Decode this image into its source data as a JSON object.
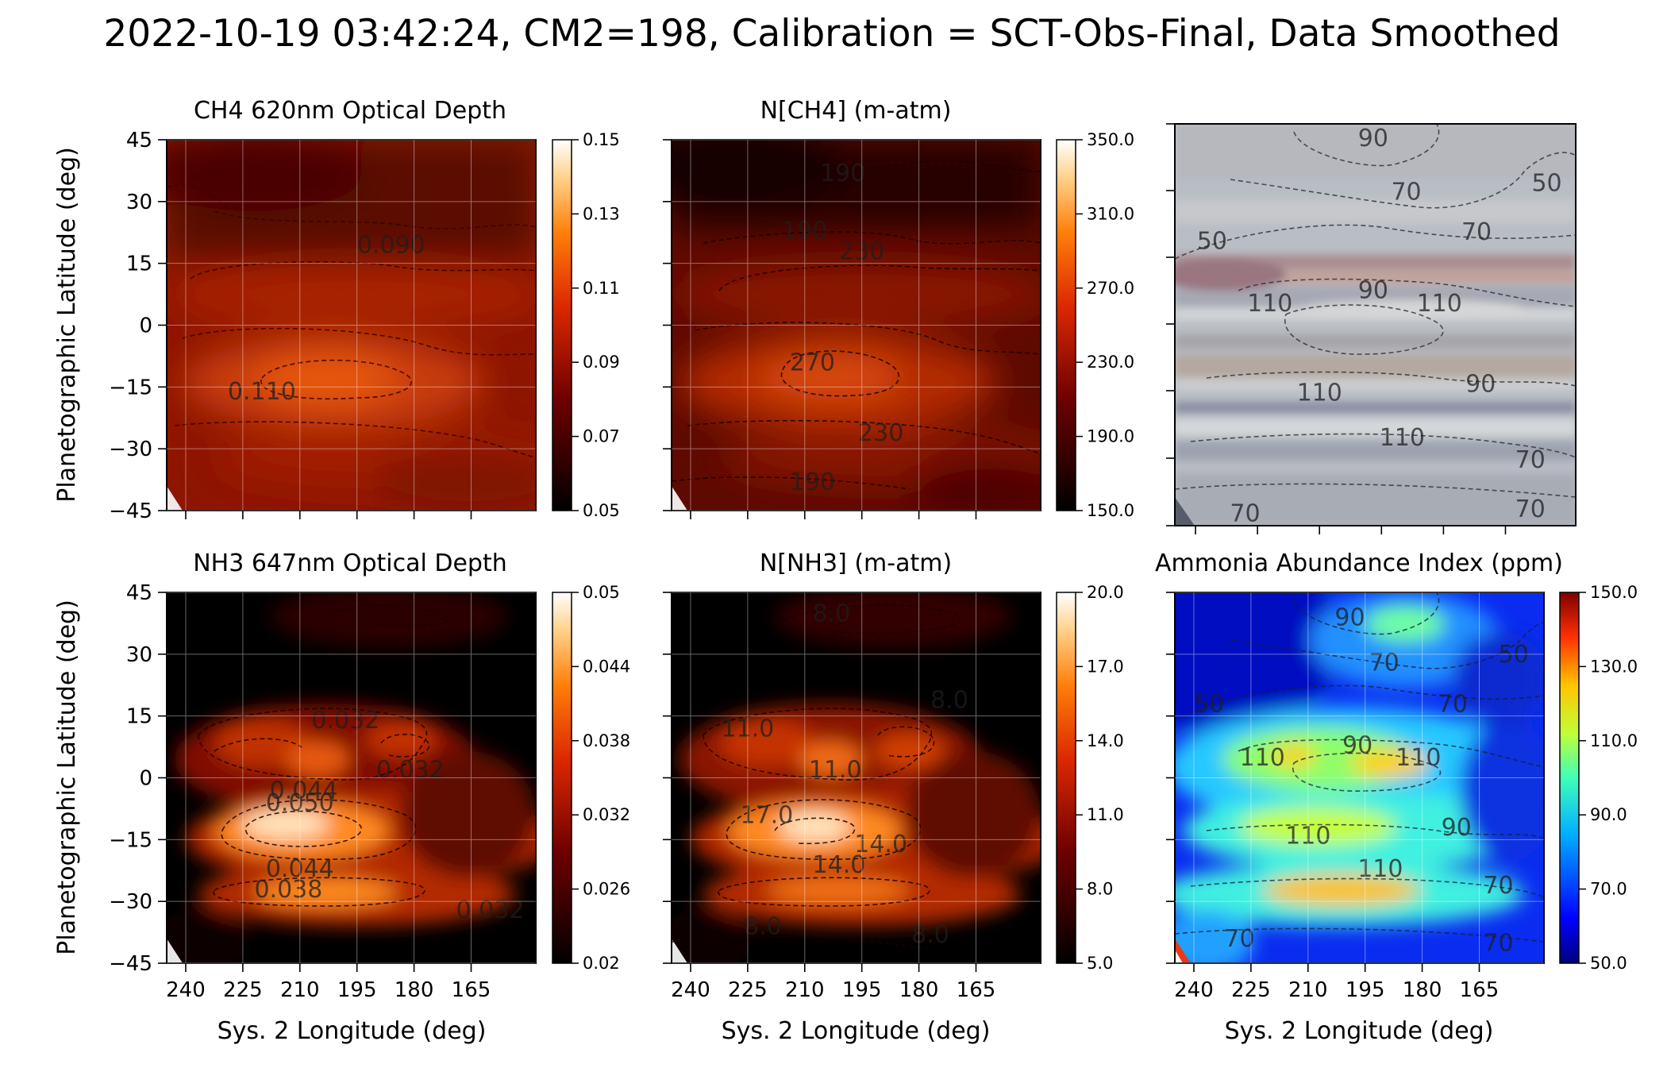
{
  "figure": {
    "suptitle": "2022-10-19 03:42:24, CM2=198, Calibration = SCT-Obs-Final, Data Smoothed"
  },
  "chart_data": [
    {
      "type": "heatmap",
      "title": "CH4 620nm Optical Depth",
      "xlabel": "",
      "ylabel": "Planetographic Latitude (deg)",
      "xlim": [
        245,
        148
      ],
      "ylim": [
        -45,
        45
      ],
      "x_ticks": [
        "240",
        "225",
        "210",
        "195",
        "180",
        "165"
      ],
      "y_ticks": [
        "45",
        "30",
        "15",
        "0",
        "−15",
        "−30",
        "−45"
      ],
      "colormap": "gist_heat",
      "clim": [
        0.05,
        0.15
      ],
      "colorbar_ticks": [
        "0.15",
        "0.13",
        "0.11",
        "0.09",
        "0.07",
        "0.05"
      ],
      "contour_labels": [
        {
          "text": "0.090",
          "lon": 186,
          "lat": 17.5
        },
        {
          "text": "0.110",
          "lon": 220,
          "lat": -18
        }
      ]
    },
    {
      "type": "heatmap",
      "title": "N[CH4] (m-atm)",
      "xlabel": "",
      "ylabel": "",
      "xlim": [
        245,
        148
      ],
      "ylim": [
        -45,
        45
      ],
      "x_ticks": [
        "240",
        "225",
        "210",
        "195",
        "180",
        "165"
      ],
      "colormap": "gist_heat",
      "clim": [
        150,
        350
      ],
      "colorbar_ticks": [
        "350.0",
        "310.0",
        "270.0",
        "230.0",
        "190.0",
        "150.0"
      ],
      "contour_labels": [
        {
          "text": "190",
          "lon": 200,
          "lat": 35
        },
        {
          "text": "190",
          "lon": 210,
          "lat": 21
        },
        {
          "text": "230",
          "lon": 195,
          "lat": 16
        },
        {
          "text": "270",
          "lon": 208,
          "lat": -11
        },
        {
          "text": "230",
          "lon": 190,
          "lat": -28
        },
        {
          "text": "190",
          "lon": 208,
          "lat": -40
        }
      ]
    },
    {
      "type": "heatmap",
      "title": "",
      "xlabel": "",
      "ylabel": "",
      "image": "true-color composite with contours",
      "x_ticks": [
        "",
        "",
        "",
        "",
        "",
        ""
      ],
      "contour_labels": [
        {
          "text": "90",
          "lon": 197,
          "lat": 40
        },
        {
          "text": "70",
          "lon": 189,
          "lat": 28
        },
        {
          "text": "50",
          "lon": 155,
          "lat": 30
        },
        {
          "text": "50",
          "lon": 236,
          "lat": 17
        },
        {
          "text": "70",
          "lon": 172,
          "lat": 19
        },
        {
          "text": "110",
          "lon": 222,
          "lat": 3
        },
        {
          "text": "90",
          "lon": 197,
          "lat": 6
        },
        {
          "text": "110",
          "lon": 181,
          "lat": 3
        },
        {
          "text": "110",
          "lon": 210,
          "lat": -17
        },
        {
          "text": "90",
          "lon": 171,
          "lat": -15
        },
        {
          "text": "110",
          "lon": 190,
          "lat": -27
        },
        {
          "text": "70",
          "lon": 159,
          "lat": -32
        },
        {
          "text": "70",
          "lon": 228,
          "lat": -44
        },
        {
          "text": "70",
          "lon": 159,
          "lat": -43
        }
      ]
    },
    {
      "type": "heatmap",
      "title": "NH3 647nm Optical Depth",
      "xlabel": "Sys. 2 Longitude (deg)",
      "ylabel": "Planetographic Latitude (deg)",
      "xlim": [
        245,
        148
      ],
      "ylim": [
        -45,
        45
      ],
      "x_ticks": [
        "240",
        "225",
        "210",
        "195",
        "180",
        "165"
      ],
      "y_ticks": [
        "45",
        "30",
        "15",
        "0",
        "−15",
        "−30",
        "−45"
      ],
      "colormap": "gist_heat",
      "clim": [
        0.02,
        0.05
      ],
      "colorbar_ticks": [
        "0.05",
        "0.044",
        "0.038",
        "0.032",
        "0.026",
        "0.02"
      ],
      "contour_labels": [
        {
          "text": "0.032",
          "lon": 198,
          "lat": 12
        },
        {
          "text": "0.032",
          "lon": 181,
          "lat": 0
        },
        {
          "text": "0.044",
          "lon": 209,
          "lat": -5
        },
        {
          "text": "0.050",
          "lon": 210,
          "lat": -8
        },
        {
          "text": "0.044",
          "lon": 210,
          "lat": -24
        },
        {
          "text": "0.038",
          "lon": 213,
          "lat": -29
        },
        {
          "text": "0.032",
          "lon": 160,
          "lat": -34
        }
      ]
    },
    {
      "type": "heatmap",
      "title": "N[NH3] (m-atm)",
      "xlabel": "Sys. 2 Longitude (deg)",
      "ylabel": "",
      "xlim": [
        245,
        148
      ],
      "ylim": [
        -45,
        45
      ],
      "x_ticks": [
        "240",
        "225",
        "210",
        "195",
        "180",
        "165"
      ],
      "colormap": "gist_heat",
      "clim": [
        5,
        20
      ],
      "colorbar_ticks": [
        "20.0",
        "17.0",
        "14.0",
        "11.0",
        "8.0",
        "5.0"
      ],
      "contour_labels": [
        {
          "text": "8.0",
          "lon": 203,
          "lat": 38
        },
        {
          "text": "8.0",
          "lon": 172,
          "lat": 17
        },
        {
          "text": "11.0",
          "lon": 225,
          "lat": 10
        },
        {
          "text": "11.0",
          "lon": 202,
          "lat": 0
        },
        {
          "text": "17.0",
          "lon": 220,
          "lat": -11
        },
        {
          "text": "14.0",
          "lon": 190,
          "lat": -18
        },
        {
          "text": "14.0",
          "lon": 201,
          "lat": -23
        },
        {
          "text": "8.0",
          "lon": 221,
          "lat": -38
        },
        {
          "text": "8.0",
          "lon": 177,
          "lat": -40
        }
      ]
    },
    {
      "type": "heatmap",
      "title": "Ammonia Abundance Index (ppm)",
      "xlabel": "Sys. 2 Longitude (deg)",
      "ylabel": "",
      "xlim": [
        245,
        148
      ],
      "ylim": [
        -45,
        45
      ],
      "x_ticks": [
        "240",
        "225",
        "210",
        "195",
        "180",
        "165"
      ],
      "colormap": "jet",
      "clim": [
        50,
        150
      ],
      "colorbar_ticks": [
        "150.0",
        "130.0",
        "110.0",
        "90.0",
        "70.0",
        "50.0"
      ],
      "contour_labels": [
        {
          "text": "90",
          "lon": 199,
          "lat": 37
        },
        {
          "text": "70",
          "lon": 190,
          "lat": 26
        },
        {
          "text": "50",
          "lon": 156,
          "lat": 28
        },
        {
          "text": "50",
          "lon": 236,
          "lat": 16
        },
        {
          "text": "70",
          "lon": 172,
          "lat": 16
        },
        {
          "text": "110",
          "lon": 222,
          "lat": 3
        },
        {
          "text": "90",
          "lon": 197,
          "lat": 6
        },
        {
          "text": "110",
          "lon": 181,
          "lat": 3
        },
        {
          "text": "110",
          "lon": 210,
          "lat": -16
        },
        {
          "text": "90",
          "lon": 171,
          "lat": -14
        },
        {
          "text": "110",
          "lon": 191,
          "lat": -24
        },
        {
          "text": "70",
          "lon": 160,
          "lat": -28
        },
        {
          "text": "70",
          "lon": 228,
          "lat": -41
        },
        {
          "text": "70",
          "lon": 160,
          "lat": -42
        }
      ]
    }
  ]
}
